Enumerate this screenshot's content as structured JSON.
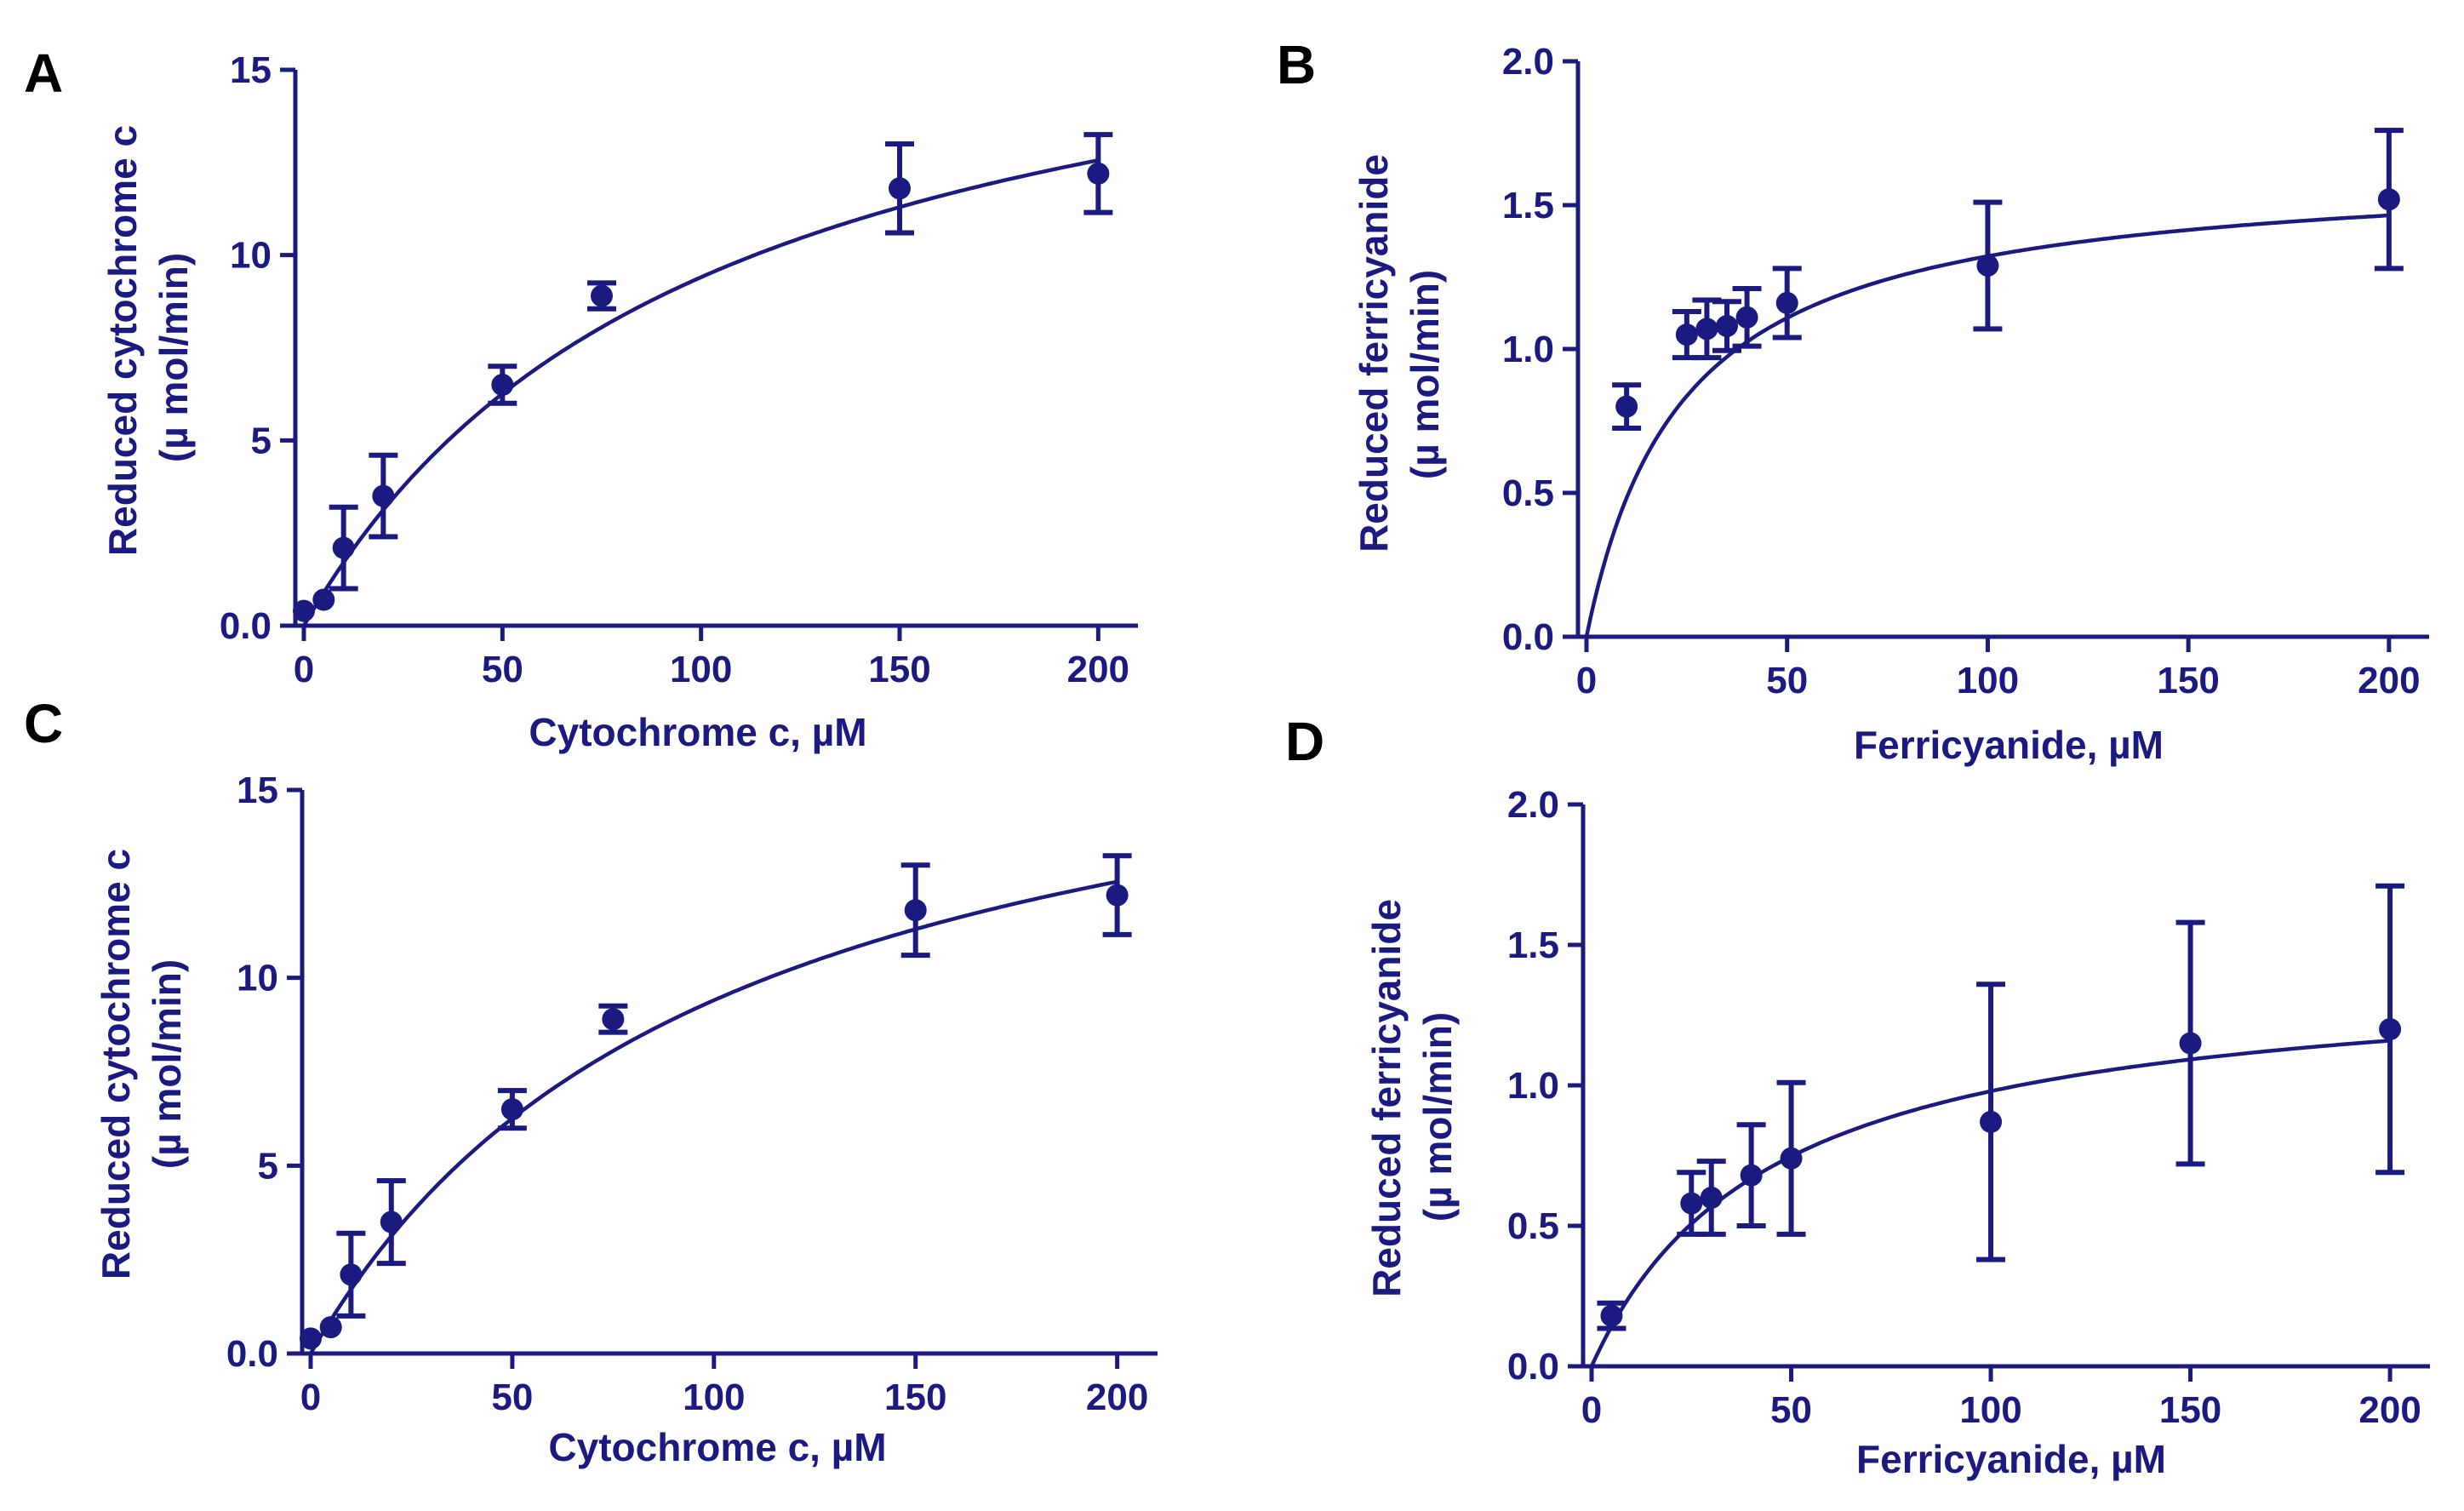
{
  "style": {
    "color": "#1a1a80",
    "letter_color": "#000000"
  },
  "chart_data": [
    {
      "panel": "A",
      "type": "scatter",
      "xlabel": "Cytochrome c, µM",
      "ylabel_lines": [
        "Reduced cytochrome c",
        "(µ mol/min)"
      ],
      "xlim": [
        0,
        210
      ],
      "ylim": [
        0,
        15
      ],
      "xticks": [
        0,
        50,
        100,
        150,
        200
      ],
      "xtick_labels": [
        "0",
        "50",
        "100",
        "150",
        "200"
      ],
      "yticks": [
        0,
        5,
        10,
        15
      ],
      "ytick_labels": [
        "0.0",
        "5",
        "10",
        "15"
      ],
      "points": [
        {
          "x": 0,
          "y": 0.4,
          "err": 0
        },
        {
          "x": 5,
          "y": 0.7,
          "err": 0
        },
        {
          "x": 10,
          "y": 2.1,
          "err": 1.1
        },
        {
          "x": 20,
          "y": 3.5,
          "err": 1.1
        },
        {
          "x": 50,
          "y": 6.5,
          "err": 0.5
        },
        {
          "x": 75,
          "y": 8.9,
          "err": 0.35
        },
        {
          "x": 150,
          "y": 11.8,
          "err": 1.2
        },
        {
          "x": 200,
          "y": 12.2,
          "err": 1.05
        }
      ],
      "fit": {
        "model": "michaelis-menten",
        "vmax": 18.9,
        "km": 101
      }
    },
    {
      "panel": "B",
      "type": "scatter",
      "xlabel": "Ferricyanide, µM",
      "ylabel_lines": [
        "Reduced ferricyanide",
        "(µ mol/min)"
      ],
      "xlim": [
        0,
        210
      ],
      "ylim": [
        0,
        2.0
      ],
      "xticks": [
        0,
        50,
        100,
        150,
        200
      ],
      "xtick_labels": [
        "0",
        "50",
        "100",
        "150",
        "200"
      ],
      "yticks": [
        0,
        0.5,
        1.0,
        1.5,
        2.0
      ],
      "ytick_labels": [
        "0.0",
        "0.5",
        "1.0",
        "1.5",
        "2.0"
      ],
      "points": [
        {
          "x": 10,
          "y": 0.8,
          "err": 0.075
        },
        {
          "x": 25,
          "y": 1.05,
          "err": 0.08
        },
        {
          "x": 30,
          "y": 1.07,
          "err": 0.1
        },
        {
          "x": 35,
          "y": 1.08,
          "err": 0.085
        },
        {
          "x": 40,
          "y": 1.11,
          "err": 0.1
        },
        {
          "x": 50,
          "y": 1.16,
          "err": 0.12
        },
        {
          "x": 100,
          "y": 1.29,
          "err": 0.22
        },
        {
          "x": 200,
          "y": 1.52,
          "err": 0.24
        }
      ],
      "fit": {
        "model": "michaelis-menten",
        "vmax": 1.64,
        "km": 24
      }
    },
    {
      "panel": "C",
      "type": "scatter",
      "xlabel": "Cytochrome c, µM",
      "ylabel_lines": [
        "Reduced cytochrome c",
        "(µ mol/min)"
      ],
      "xlim": [
        0,
        210
      ],
      "ylim": [
        0,
        15
      ],
      "xticks": [
        0,
        50,
        100,
        150,
        200
      ],
      "xtick_labels": [
        "0",
        "50",
        "100",
        "150",
        "200"
      ],
      "yticks": [
        0,
        5,
        10,
        15
      ],
      "ytick_labels": [
        "0.0",
        "5",
        "10",
        "15"
      ],
      "points": [
        {
          "x": 0,
          "y": 0.4,
          "err": 0
        },
        {
          "x": 5,
          "y": 0.7,
          "err": 0
        },
        {
          "x": 10,
          "y": 2.1,
          "err": 1.1
        },
        {
          "x": 20,
          "y": 3.5,
          "err": 1.1
        },
        {
          "x": 50,
          "y": 6.5,
          "err": 0.5
        },
        {
          "x": 75,
          "y": 8.9,
          "err": 0.35
        },
        {
          "x": 150,
          "y": 11.8,
          "err": 1.2
        },
        {
          "x": 200,
          "y": 12.2,
          "err": 1.05
        }
      ],
      "fit": {
        "model": "michaelis-menten",
        "vmax": 18.9,
        "km": 101
      }
    },
    {
      "panel": "D",
      "type": "scatter",
      "xlabel": "Ferricyanide, µM",
      "ylabel_lines": [
        "Reduced ferricyanide",
        "(µ mol/min)"
      ],
      "xlim": [
        0,
        210
      ],
      "ylim": [
        0,
        2.0
      ],
      "xticks": [
        0,
        50,
        100,
        150,
        200
      ],
      "xtick_labels": [
        "0",
        "50",
        "100",
        "150",
        "200"
      ],
      "yticks": [
        0,
        0.5,
        1.0,
        1.5,
        2.0
      ],
      "ytick_labels": [
        "0.0",
        "0.5",
        "1.0",
        "1.5",
        "2.0"
      ],
      "points": [
        {
          "x": 5,
          "y": 0.18,
          "err": 0.045
        },
        {
          "x": 25,
          "y": 0.58,
          "err": 0.11
        },
        {
          "x": 30,
          "y": 0.6,
          "err": 0.13
        },
        {
          "x": 40,
          "y": 0.68,
          "err": 0.18
        },
        {
          "x": 50,
          "y": 0.74,
          "err": 0.27
        },
        {
          "x": 100,
          "y": 0.87,
          "err": 0.49
        },
        {
          "x": 150,
          "y": 1.15,
          "err": 0.43
        },
        {
          "x": 200,
          "y": 1.2,
          "err": 0.51
        }
      ],
      "fit": {
        "model": "michaelis-menten",
        "vmax": 1.42,
        "km": 45
      }
    }
  ]
}
